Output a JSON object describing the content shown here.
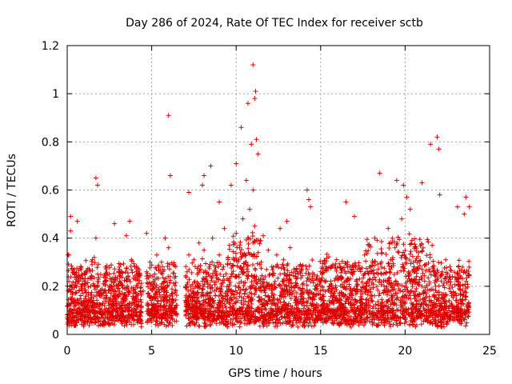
{
  "chart_data": {
    "type": "scatter",
    "title": "Day 286 of 2024, Rate Of TEC Index for receiver sctb",
    "xlabel": "GPS time / hours",
    "ylabel": "ROTI / TECUs",
    "xlim": [
      0,
      25
    ],
    "ylim": [
      0,
      1.2
    ],
    "x_ticks": [
      0,
      5,
      10,
      15,
      20,
      25
    ],
    "x_tick_labels": [
      "0",
      "5",
      "10",
      "15",
      "20",
      "25"
    ],
    "y_ticks": [
      0,
      0.2,
      0.4,
      0.6,
      0.8,
      1.0,
      1.2
    ],
    "y_tick_labels": [
      "0",
      "0.2",
      "0.4",
      "0.6",
      "0.8",
      "1",
      "1.2"
    ],
    "grid": true,
    "marker": "plus",
    "color": "#e00000",
    "series": [
      {
        "name": "ROTI",
        "x": [
          0.05,
          0.1,
          0.15,
          0.2,
          0.3,
          0.4,
          0.5,
          0.6,
          0.7,
          0.8,
          0.9,
          1.0,
          1.1,
          1.2,
          1.3,
          1.4,
          1.5,
          1.6,
          1.7,
          1.8,
          1.9,
          2.0,
          2.1,
          2.2,
          2.3,
          2.4,
          2.5,
          2.6,
          2.7,
          2.8,
          2.9,
          3.0,
          3.1,
          3.2,
          3.3,
          3.4,
          3.5,
          3.6,
          3.7,
          3.8,
          3.9,
          4.0,
          4.1,
          4.2,
          4.3,
          4.5,
          4.7,
          4.8,
          4.9,
          5.0,
          5.1,
          5.2,
          5.3,
          5.4,
          5.5,
          5.6,
          5.7,
          5.8,
          5.9,
          6.0,
          6.1,
          6.2,
          6.3,
          6.4,
          6.5,
          7.0,
          7.1,
          7.2,
          7.3,
          7.4,
          7.5,
          7.6,
          7.7,
          7.8,
          7.9,
          8.0,
          8.1,
          8.2,
          8.3,
          8.4,
          8.5,
          8.6,
          8.7,
          8.8,
          8.9,
          9.0,
          9.1,
          9.2,
          9.3,
          9.4,
          9.5,
          9.6,
          9.7,
          9.8,
          9.9,
          10.0,
          10.1,
          10.2,
          10.3,
          10.4,
          10.5,
          10.6,
          10.7,
          10.8,
          10.9,
          11.0,
          11.1,
          11.2,
          11.3,
          11.4,
          11.5,
          11.6,
          11.7,
          11.8,
          11.9,
          12.0,
          12.1,
          12.2,
          12.3,
          12.4,
          12.5,
          12.6,
          12.7,
          12.8,
          12.9,
          13.0,
          13.2,
          13.4,
          13.6,
          13.8,
          14.0,
          14.2,
          14.4,
          14.6,
          14.8,
          15.0,
          15.2,
          15.4,
          15.6,
          15.8,
          16.0,
          16.2,
          16.4,
          16.6,
          16.8,
          17.0,
          17.2,
          17.4,
          17.6,
          17.8,
          18.0,
          18.2,
          18.4,
          18.6,
          18.8,
          19.0,
          19.2,
          19.4,
          19.6,
          19.8,
          20.0,
          20.2,
          20.4,
          20.6,
          20.8,
          21.0,
          21.2,
          21.4,
          21.6,
          21.8,
          22.0,
          22.2,
          22.4,
          22.6,
          22.8,
          23.0,
          23.2,
          23.4,
          23.6,
          23.8,
          0.1,
          0.2,
          0.6,
          1.8,
          1.7,
          6.0,
          6.1,
          8.5,
          8.0,
          7.2,
          10.0,
          10.3,
          10.7,
          10.9,
          11.0,
          11.1,
          11.15,
          11.2,
          11.3,
          11.0,
          10.6,
          9.7,
          14.2,
          14.3,
          14.4,
          18.5,
          19.5,
          19.9,
          20.1,
          20.3,
          21.0,
          21.5,
          21.9,
          22.0,
          22.05,
          23.1,
          23.5,
          16.5,
          17.0,
          13.0,
          12.6,
          9.0,
          8.1,
          4.7,
          3.5,
          2.8,
          3.7
        ],
        "y": [
          0.33,
          0.22,
          0.1,
          0.43,
          0.15,
          0.27,
          0.12,
          0.06,
          0.18,
          0.23,
          0.08,
          0.14,
          0.26,
          0.05,
          0.11,
          0.2,
          0.13,
          0.32,
          0.4,
          0.22,
          0.09,
          0.16,
          0.04,
          0.12,
          0.25,
          0.07,
          0.14,
          0.18,
          0.06,
          0.22,
          0.11,
          0.16,
          0.27,
          0.08,
          0.13,
          0.19,
          0.05,
          0.24,
          0.1,
          0.31,
          0.15,
          0.28,
          0.09,
          0.21,
          0.06,
          0.18,
          0.26,
          0.12,
          0.3,
          0.08,
          0.22,
          0.15,
          0.33,
          0.1,
          0.27,
          0.05,
          0.19,
          0.4,
          0.13,
          0.36,
          0.24,
          0.12,
          0.29,
          0.18,
          0.08,
          0.14,
          0.26,
          0.33,
          0.2,
          0.1,
          0.31,
          0.17,
          0.25,
          0.38,
          0.12,
          0.22,
          0.35,
          0.16,
          0.07,
          0.28,
          0.19,
          0.4,
          0.13,
          0.26,
          0.09,
          0.33,
          0.21,
          0.15,
          0.44,
          0.11,
          0.29,
          0.37,
          0.18,
          0.25,
          0.31,
          0.42,
          0.14,
          0.36,
          0.22,
          0.48,
          0.17,
          0.3,
          0.26,
          0.52,
          0.2,
          0.38,
          0.45,
          0.24,
          0.34,
          0.29,
          0.18,
          0.41,
          0.12,
          0.27,
          0.35,
          0.2,
          0.16,
          0.28,
          0.22,
          0.33,
          0.14,
          0.25,
          0.19,
          0.31,
          0.1,
          0.24,
          0.36,
          0.18,
          0.21,
          0.29,
          0.15,
          0.27,
          0.22,
          0.12,
          0.19,
          0.26,
          0.14,
          0.08,
          0.21,
          0.17,
          0.11,
          0.24,
          0.06,
          0.15,
          0.03,
          0.19,
          0.27,
          0.12,
          0.33,
          0.22,
          0.16,
          0.4,
          0.25,
          0.3,
          0.18,
          0.44,
          0.28,
          0.36,
          0.21,
          0.48,
          0.32,
          0.26,
          0.39,
          0.15,
          0.34,
          0.23,
          0.29,
          0.12,
          0.37,
          0.2,
          0.08,
          0.26,
          0.31,
          0.14,
          0.24,
          0.09,
          0.19,
          0.28,
          0.57,
          0.53,
          0.33,
          0.49,
          0.47,
          0.62,
          0.65,
          0.91,
          0.66,
          0.7,
          0.62,
          0.59,
          0.71,
          0.86,
          0.96,
          0.79,
          1.12,
          0.98,
          1.01,
          0.81,
          0.75,
          0.6,
          0.64,
          0.62,
          0.6,
          0.56,
          0.53,
          0.67,
          0.64,
          0.62,
          0.57,
          0.52,
          0.63,
          0.79,
          0.82,
          0.77,
          0.58,
          0.53,
          0.5,
          0.55,
          0.49,
          0.47,
          0.44,
          0.55,
          0.66,
          0.42,
          0.41,
          0.46,
          0.47
        ]
      }
    ]
  }
}
